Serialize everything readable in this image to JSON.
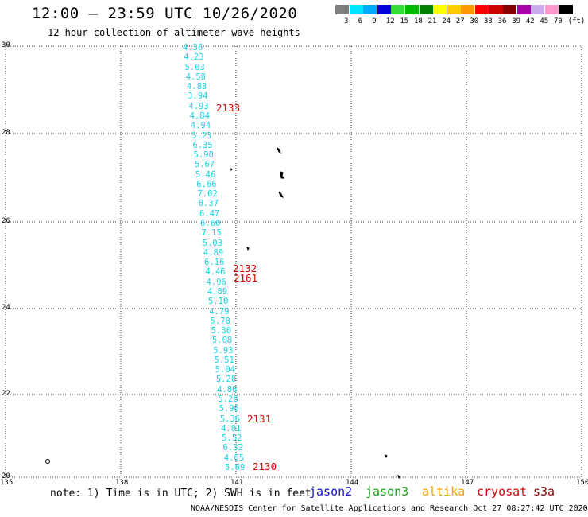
{
  "title": "12:00 – 23:59 UTC 10/26/2020",
  "subtitle": "12 hour collection of altimeter wave heights",
  "note": "note: 1) Time is in UTC; 2) SWH is in feet",
  "credit": "NOAA/NESDIS Center for Satellite Applications and Research     Oct 27 08:27:42 UTC 2020",
  "satellites": [
    {
      "name": "jason2",
      "color": "#1010d0"
    },
    {
      "name": "jason3",
      "color": "#16a016"
    },
    {
      "name": "altika",
      "color": "#f0a000"
    },
    {
      "name": "cryosat",
      "color": "#d90000"
    },
    {
      "name": "s3a",
      "color": "#8b0000"
    }
  ],
  "legend": {
    "labels": [
      "3",
      "6",
      "9",
      "12",
      "15",
      "18",
      "21",
      "24",
      "27",
      "30",
      "33",
      "36",
      "39",
      "42",
      "45",
      "70",
      "(ft)"
    ],
    "colors": [
      "#7f7f7f",
      "#00e5ff",
      "#00aaff",
      "#0000dd",
      "#33dd33",
      "#00bb00",
      "#007f00",
      "#ffff00",
      "#ffcc00",
      "#ff9900",
      "#ff0000",
      "#cc0000",
      "#880000",
      "#aa00aa",
      "#ccaaee",
      "#ff99cc",
      "#000000"
    ]
  },
  "axes": {
    "lat_ticks": [
      "30",
      "28",
      "26",
      "24",
      "22",
      "20"
    ],
    "lon_ticks": [
      "135",
      "138",
      "141",
      "144",
      "147",
      "150"
    ]
  },
  "wave_heights": [
    "4.36",
    "4.23",
    "5.03",
    "4.58",
    "4.83",
    "3.94",
    "4.93",
    "4.84",
    "4.94",
    "5.23",
    "6.35",
    "5.90",
    "5.67",
    "5.46",
    "6.66",
    "7.02",
    "8.37",
    "6.47",
    "6.60",
    "7.15",
    "5.03",
    "4.89",
    "6.16",
    "4.46",
    "4.96",
    "4.89",
    "5.10",
    "4.79",
    "5.78",
    "5.30",
    "5.08",
    "5.93",
    "5.51",
    "5.04",
    "5.28",
    "4.86",
    "5.28",
    "5.96",
    "5.36",
    "4.01",
    "5.52",
    "6.32",
    "4.65",
    "5.69"
  ],
  "pass_times": [
    "2133",
    "2132",
    "2131",
    "2130",
    "2161"
  ],
  "islands": [
    "island-1",
    "island-2",
    "island-3",
    "island-4"
  ]
}
